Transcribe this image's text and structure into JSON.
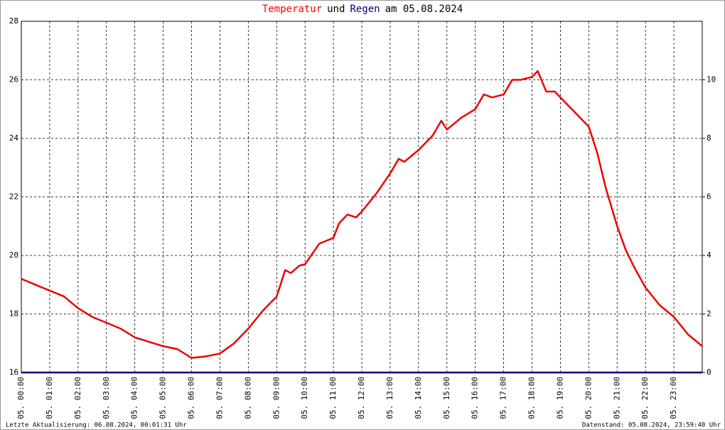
{
  "chart_data": {
    "type": "line",
    "title_parts": [
      {
        "text": "Temperatur",
        "color": "#ff0000"
      },
      {
        "text": "und",
        "color": "#000000"
      },
      {
        "text": "Regen",
        "color": "#000080"
      },
      {
        "text": "am 05.08.2024",
        "color": "#000000"
      }
    ],
    "x": [
      0,
      0.5,
      1,
      1.5,
      2,
      2.5,
      3,
      3.5,
      4,
      4.5,
      5,
      5.5,
      6,
      6.5,
      7,
      7.5,
      8,
      8.5,
      9,
      9.3,
      9.5,
      9.8,
      10,
      10.5,
      11,
      11.2,
      11.5,
      11.8,
      12,
      12.5,
      13,
      13.3,
      13.5,
      14,
      14.5,
      14.8,
      15,
      15.5,
      16,
      16.3,
      16.6,
      17,
      17.3,
      17.6,
      18,
      18.2,
      18.5,
      18.8,
      19,
      19.5,
      20,
      20.3,
      20.6,
      21,
      21.3,
      21.6,
      22,
      22.5,
      23,
      23.5,
      24
    ],
    "series": [
      {
        "name": "Temperatur",
        "color": "#ee0000",
        "values": [
          19.2,
          19.0,
          18.8,
          18.6,
          18.2,
          17.9,
          17.7,
          17.5,
          17.2,
          17.05,
          16.9,
          16.8,
          16.5,
          16.55,
          16.65,
          17.0,
          17.5,
          18.1,
          18.6,
          19.5,
          19.4,
          19.65,
          19.7,
          20.4,
          20.6,
          21.1,
          21.4,
          21.3,
          21.5,
          22.1,
          22.8,
          23.3,
          23.2,
          23.6,
          24.1,
          24.6,
          24.3,
          24.7,
          25.0,
          25.5,
          25.4,
          25.5,
          26.0,
          26.0,
          26.1,
          26.3,
          25.6,
          25.6,
          25.4,
          24.9,
          24.4,
          23.5,
          22.3,
          21.0,
          20.2,
          19.6,
          18.9,
          18.3,
          17.9,
          17.3,
          16.9
        ]
      },
      {
        "name": "Regen",
        "color": "#000080",
        "axis": "y2",
        "values": [
          0,
          0,
          0,
          0,
          0,
          0,
          0,
          0,
          0,
          0,
          0,
          0,
          0,
          0,
          0,
          0,
          0,
          0,
          0,
          0,
          0,
          0,
          0,
          0,
          0,
          0,
          0,
          0,
          0,
          0,
          0,
          0,
          0,
          0,
          0,
          0,
          0,
          0,
          0,
          0,
          0,
          0,
          0,
          0,
          0,
          0,
          0,
          0,
          0,
          0,
          0,
          0,
          0,
          0,
          0,
          0,
          0,
          0,
          0,
          0,
          0
        ]
      }
    ],
    "xlim": [
      0,
      24
    ],
    "xticks": [
      {
        "value": 0,
        "label": "05. 00:00"
      },
      {
        "value": 1,
        "label": "05. 01:00"
      },
      {
        "value": 2,
        "label": "05. 02:00"
      },
      {
        "value": 3,
        "label": "05. 03:00"
      },
      {
        "value": 4,
        "label": "05. 04:00"
      },
      {
        "value": 5,
        "label": "05. 05:00"
      },
      {
        "value": 6,
        "label": "05. 06:00"
      },
      {
        "value": 7,
        "label": "05. 07:00"
      },
      {
        "value": 8,
        "label": "05. 08:00"
      },
      {
        "value": 9,
        "label": "05. 09:00"
      },
      {
        "value": 10,
        "label": "05. 10:00"
      },
      {
        "value": 11,
        "label": "05. 11:00"
      },
      {
        "value": 12,
        "label": "05. 12:00"
      },
      {
        "value": 13,
        "label": "05. 13:00"
      },
      {
        "value": 14,
        "label": "05. 14:00"
      },
      {
        "value": 15,
        "label": "05. 15:00"
      },
      {
        "value": 16,
        "label": "05. 16:00"
      },
      {
        "value": 17,
        "label": "05. 17:00"
      },
      {
        "value": 18,
        "label": "05. 18:00"
      },
      {
        "value": 19,
        "label": "05. 19:00"
      },
      {
        "value": 20,
        "label": "05. 20:00"
      },
      {
        "value": 21,
        "label": "05. 21:00"
      },
      {
        "value": 22,
        "label": "05. 22:00"
      },
      {
        "value": 23,
        "label": "05. 23:00"
      }
    ],
    "ylim": [
      16,
      28
    ],
    "yticks": [
      16,
      18,
      20,
      22,
      24,
      26,
      28
    ],
    "y2lim": [
      0,
      12
    ],
    "y2ticks": [
      0,
      2,
      4,
      6,
      8,
      10
    ],
    "y2tick_color": "#00cc00",
    "grid": true,
    "footer_left": "Letzte Aktualisierung: 06.08.2024, 00:01:31 Uhr",
    "footer_right": "Datenstand: 05.08.2024, 23:59:40 Uhr"
  }
}
